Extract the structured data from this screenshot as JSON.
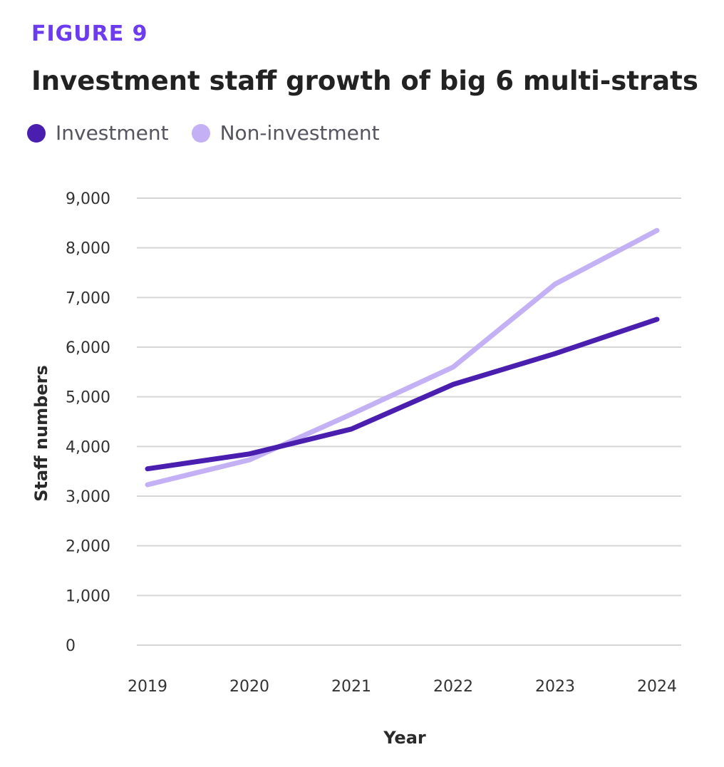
{
  "header": {
    "figure_label": "FIGURE 9"
  },
  "chart_data": {
    "type": "line",
    "title": "Investment staff growth of big 6 multi-strats",
    "xlabel": "Year",
    "ylabel": "Staff numbers",
    "categories": [
      "2019",
      "2020",
      "2021",
      "2022",
      "2023",
      "2024"
    ],
    "ylim": [
      0,
      9000
    ],
    "yticks": [
      0,
      1000,
      2000,
      3000,
      4000,
      5000,
      6000,
      7000,
      8000,
      9000
    ],
    "ytick_labels": [
      "0",
      "1,000",
      "2,000",
      "3,000",
      "4,000",
      "5,000",
      "6,000",
      "7,000",
      "8,000",
      "9,000"
    ],
    "grid": "horizontal",
    "legend_position": "top-left",
    "series": [
      {
        "name": "Investment",
        "color": "#4a1fb0",
        "values": [
          3550,
          3850,
          4350,
          5250,
          5870,
          6560
        ]
      },
      {
        "name": "Non-investment",
        "color": "#c4b0f5",
        "values": [
          3230,
          3730,
          4650,
          5600,
          7270,
          8350
        ]
      }
    ]
  }
}
